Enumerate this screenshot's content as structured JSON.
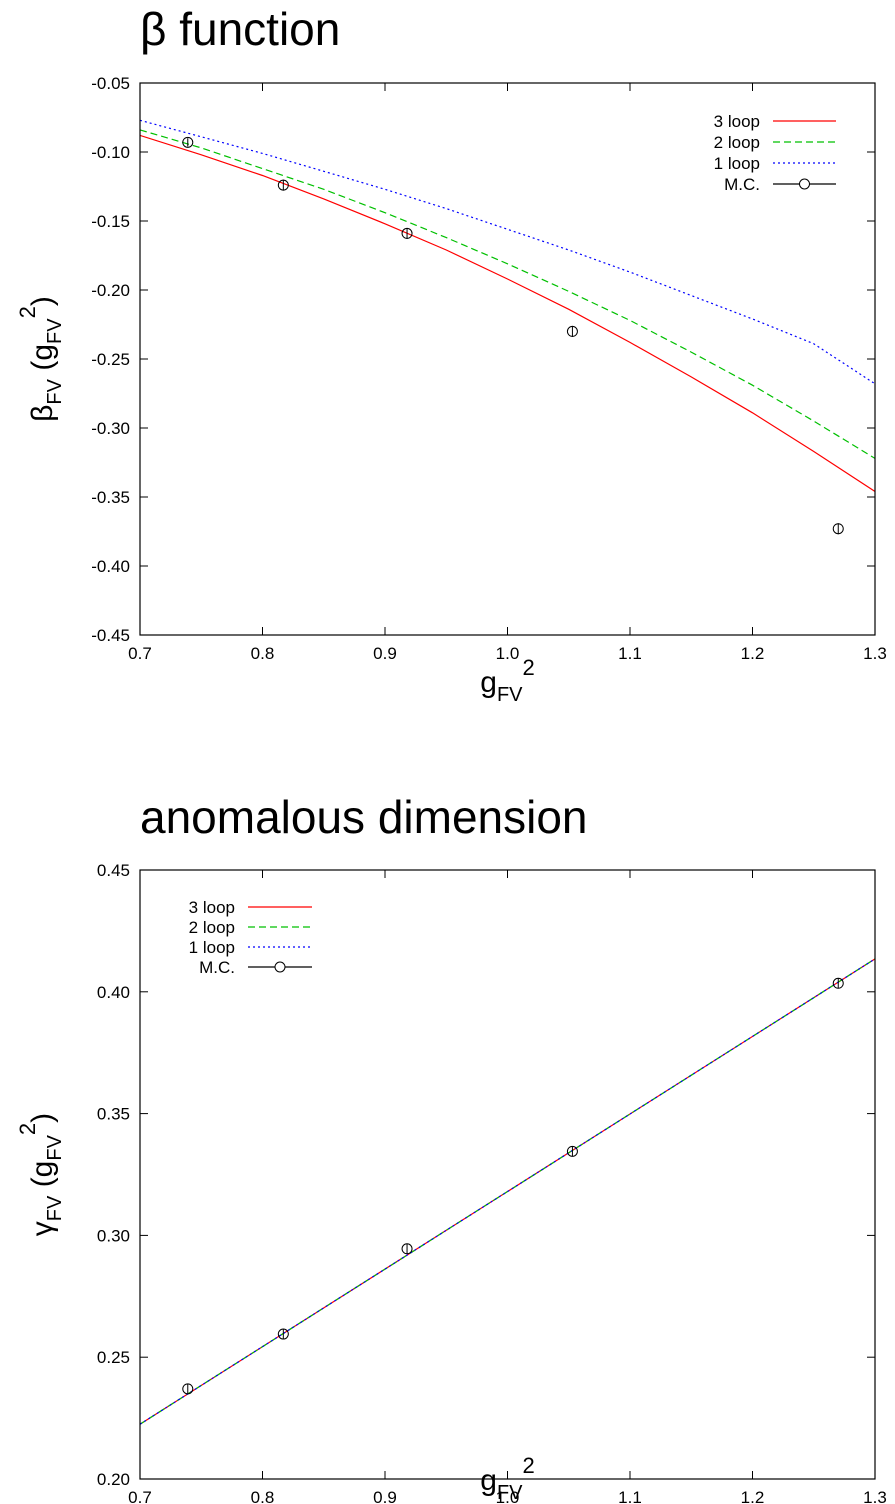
{
  "chart_data": [
    {
      "type": "line",
      "title": "β function",
      "xlabel": {
        "base": "g",
        "sub": "FV",
        "sup": "2"
      },
      "ylabel": {
        "base": "β",
        "sub": "FV",
        "open": " (g",
        "sub2": "FV",
        "sup": "2",
        "close": ")"
      },
      "xlim": [
        0.7,
        1.3
      ],
      "ylim": [
        -0.45,
        -0.05
      ],
      "xticks": [
        0.7,
        0.8,
        0.9,
        1.0,
        1.1,
        1.2,
        1.3
      ],
      "xtick_labels": [
        "0.7",
        "0.8",
        "0.9",
        "1.0",
        "1.1",
        "1.2",
        "1.3"
      ],
      "yticks": [
        -0.45,
        -0.4,
        -0.35,
        -0.3,
        -0.25,
        -0.2,
        -0.15,
        -0.1,
        -0.05
      ],
      "ytick_labels": [
        "-0.45",
        "-0.40",
        "-0.35",
        "-0.30",
        "-0.25",
        "-0.20",
        "-0.15",
        "-0.10",
        "-0.05"
      ],
      "legend_position": "top-right",
      "series": [
        {
          "name": "3 loop",
          "kind": "line",
          "color": "#ff0000",
          "dash": "",
          "x": [
            0.7,
            0.75,
            0.8,
            0.85,
            0.9,
            0.95,
            1.0,
            1.05,
            1.1,
            1.15,
            1.2,
            1.25,
            1.3
          ],
          "y": [
            -0.088,
            -0.102,
            -0.117,
            -0.134,
            -0.152,
            -0.171,
            -0.192,
            -0.214,
            -0.238,
            -0.263,
            -0.289,
            -0.317,
            -0.346
          ]
        },
        {
          "name": "2 loop",
          "kind": "line",
          "color": "#00c000",
          "dash": "7,4",
          "x": [
            0.7,
            0.75,
            0.8,
            0.85,
            0.9,
            0.95,
            1.0,
            1.05,
            1.1,
            1.15,
            1.2,
            1.25,
            1.3
          ],
          "y": [
            -0.084,
            -0.097,
            -0.112,
            -0.127,
            -0.144,
            -0.162,
            -0.181,
            -0.201,
            -0.222,
            -0.245,
            -0.269,
            -0.295,
            -0.322
          ]
        },
        {
          "name": "1 loop",
          "kind": "line",
          "color": "#0000ff",
          "dash": "2,3",
          "x": [
            0.7,
            0.75,
            0.8,
            0.85,
            0.9,
            0.95,
            1.0,
            1.05,
            1.1,
            1.15,
            1.2,
            1.25,
            1.3
          ],
          "y": [
            -0.077,
            -0.089,
            -0.101,
            -0.114,
            -0.127,
            -0.141,
            -0.156,
            -0.171,
            -0.187,
            -0.204,
            -0.221,
            -0.239,
            -0.268
          ]
        },
        {
          "name": "M.C.",
          "kind": "points",
          "color": "#000000",
          "x": [
            0.739,
            0.817,
            0.918,
            1.053,
            1.27
          ],
          "y": [
            -0.093,
            -0.124,
            -0.159,
            -0.23,
            -0.373
          ],
          "err": [
            0.003,
            0.004,
            0.004,
            0.004,
            0.004
          ]
        }
      ]
    },
    {
      "type": "line",
      "title": "anomalous dimension",
      "xlabel": {
        "base": "g",
        "sub": "FV",
        "sup": "2"
      },
      "ylabel": {
        "base": "γ",
        "sub": "FV",
        "open": " (g",
        "sub2": "FV",
        "sup": "2",
        "close": ")"
      },
      "xlim": [
        0.7,
        1.3
      ],
      "ylim": [
        0.2,
        0.45
      ],
      "xticks": [
        0.7,
        0.8,
        0.9,
        1.0,
        1.1,
        1.2,
        1.3
      ],
      "xtick_labels": [
        "0.7",
        "0.8",
        "0.9",
        "1.0",
        "1.1",
        "1.2",
        "1.3"
      ],
      "yticks": [
        0.2,
        0.25,
        0.3,
        0.35,
        0.4,
        0.45
      ],
      "ytick_labels": [
        "0.20",
        "0.25",
        "0.30",
        "0.35",
        "0.40",
        "0.45"
      ],
      "legend_position": "top-left",
      "series": [
        {
          "name": "3 loop",
          "kind": "line",
          "color": "#ff0000",
          "dash": "",
          "x": [
            0.7,
            1.3
          ],
          "y": [
            0.2225,
            0.4135
          ]
        },
        {
          "name": "2 loop",
          "kind": "line",
          "color": "#00c000",
          "dash": "7,4",
          "x": [
            0.7,
            1.3
          ],
          "y": [
            0.2225,
            0.4135
          ]
        },
        {
          "name": "1 loop",
          "kind": "line",
          "color": "#0000ff",
          "dash": "2,3",
          "x": [
            0.7,
            1.3
          ],
          "y": [
            0.2225,
            0.4135
          ]
        },
        {
          "name": "M.C.",
          "kind": "points",
          "color": "#000000",
          "x": [
            0.739,
            0.817,
            0.918,
            1.053,
            1.27
          ],
          "y": [
            0.237,
            0.2595,
            0.2945,
            0.3345,
            0.4035
          ],
          "err": [
            0.002,
            0.002,
            0.002,
            0.002,
            0.002
          ]
        }
      ]
    }
  ]
}
